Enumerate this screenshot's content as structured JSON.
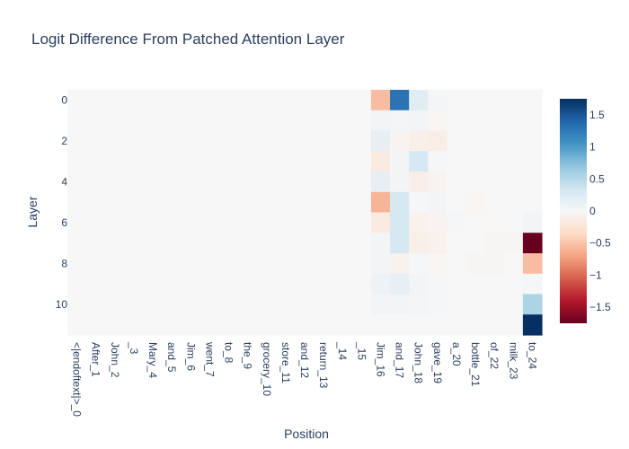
{
  "chart_data": {
    "type": "heatmap",
    "title": "Logit Difference From Patched Attention Layer",
    "xlabel": "Position",
    "ylabel": "Layer",
    "x_categories": [
      "<|endoftext|>_0",
      "After_1",
      "John_2",
      "_3",
      "Mary_4",
      "and_5",
      "Jim_6",
      "went_7",
      "to_8",
      "the_9",
      "grocery_10",
      "store_11",
      "and_12",
      "return_13",
      "_14",
      "_15",
      "Jim_16",
      "and_17",
      "John_18",
      "gave_19",
      "a_20",
      "bottle_21",
      "of_22",
      "milk_23",
      "to_24"
    ],
    "y_tick_labels": [
      "0",
      "2",
      "4",
      "6",
      "8",
      "10"
    ],
    "y_tick_values": [
      0,
      2,
      4,
      6,
      8,
      10
    ],
    "layers": 12,
    "colorscale": "RdBu",
    "zmin": -1.75,
    "zmax": 1.75,
    "colorbar_ticks": [
      1.5,
      1,
      0.5,
      0,
      -0.5,
      -1,
      -1.5
    ],
    "colorbar_tick_labels": [
      "1.5",
      "1",
      "0.5",
      "0",
      "−0.5",
      "−1",
      "−1.5"
    ],
    "values": [
      [
        0,
        0,
        0,
        0,
        0,
        0,
        0,
        0,
        0,
        0,
        0,
        0,
        0,
        0,
        0,
        0,
        -0.55,
        1.3,
        0.2,
        0.03,
        0,
        0,
        0,
        0,
        0
      ],
      [
        0,
        0,
        0,
        0,
        0,
        0,
        0,
        0,
        0,
        0,
        0,
        0,
        0,
        0,
        0,
        0,
        0.05,
        0.03,
        0.05,
        -0.03,
        0,
        0,
        0,
        0,
        0
      ],
      [
        0,
        0,
        0,
        0,
        0,
        0,
        0,
        0,
        0,
        0,
        0,
        0,
        0,
        0,
        0,
        0,
        0.15,
        -0.05,
        -0.1,
        -0.12,
        0,
        0,
        0,
        0,
        0
      ],
      [
        0,
        0,
        0,
        0,
        0,
        0,
        0,
        0,
        0,
        0,
        0,
        0,
        0,
        0,
        0,
        0,
        -0.15,
        0.05,
        0.3,
        0.02,
        0,
        0,
        0,
        0,
        0
      ],
      [
        0,
        0,
        0,
        0,
        0,
        0,
        0,
        0,
        0,
        0,
        0,
        0,
        0,
        0,
        0,
        0,
        0.15,
        0.05,
        -0.12,
        -0.05,
        0,
        0,
        0,
        0,
        0
      ],
      [
        0,
        0,
        0,
        0,
        0,
        0,
        0,
        0,
        0,
        0,
        0,
        0,
        0,
        0,
        0,
        0,
        -0.6,
        0.3,
        0.02,
        0.05,
        0,
        -0.03,
        0,
        0,
        0
      ],
      [
        0,
        0,
        0,
        0,
        0,
        0,
        0,
        0,
        0,
        0,
        0,
        0,
        0,
        0,
        0,
        0,
        -0.15,
        0.3,
        -0.08,
        -0.05,
        0.02,
        0,
        0,
        0,
        0.05
      ],
      [
        0,
        0,
        0,
        0,
        0,
        0,
        0,
        0,
        0,
        0,
        0,
        0,
        0,
        0,
        0,
        0,
        0.05,
        0.3,
        -0.1,
        -0.08,
        0,
        0,
        -0.02,
        -0.02,
        -1.75
      ],
      [
        0,
        0,
        0,
        0,
        0,
        0,
        0,
        0,
        0,
        0,
        0,
        0,
        0,
        0,
        0,
        0,
        0.05,
        -0.08,
        0.02,
        -0.03,
        0,
        -0.02,
        -0.02,
        0,
        -0.55
      ],
      [
        0,
        0,
        0,
        0,
        0,
        0,
        0,
        0,
        0,
        0,
        0,
        0,
        0,
        0,
        0,
        0,
        0.1,
        0.15,
        0.05,
        0.02,
        0,
        0,
        0,
        0,
        0.02
      ],
      [
        0,
        0,
        0,
        0,
        0,
        0,
        0,
        0,
        0,
        0,
        0,
        0,
        0,
        0,
        0,
        0,
        0.05,
        0.05,
        0.03,
        0.02,
        0,
        0,
        0,
        0,
        0.55
      ],
      [
        0,
        0,
        0,
        0,
        0,
        0,
        0,
        0,
        0,
        0,
        0,
        0,
        0,
        0,
        0,
        0,
        0,
        0,
        0,
        0,
        0,
        0,
        0,
        0,
        1.75
      ]
    ]
  }
}
